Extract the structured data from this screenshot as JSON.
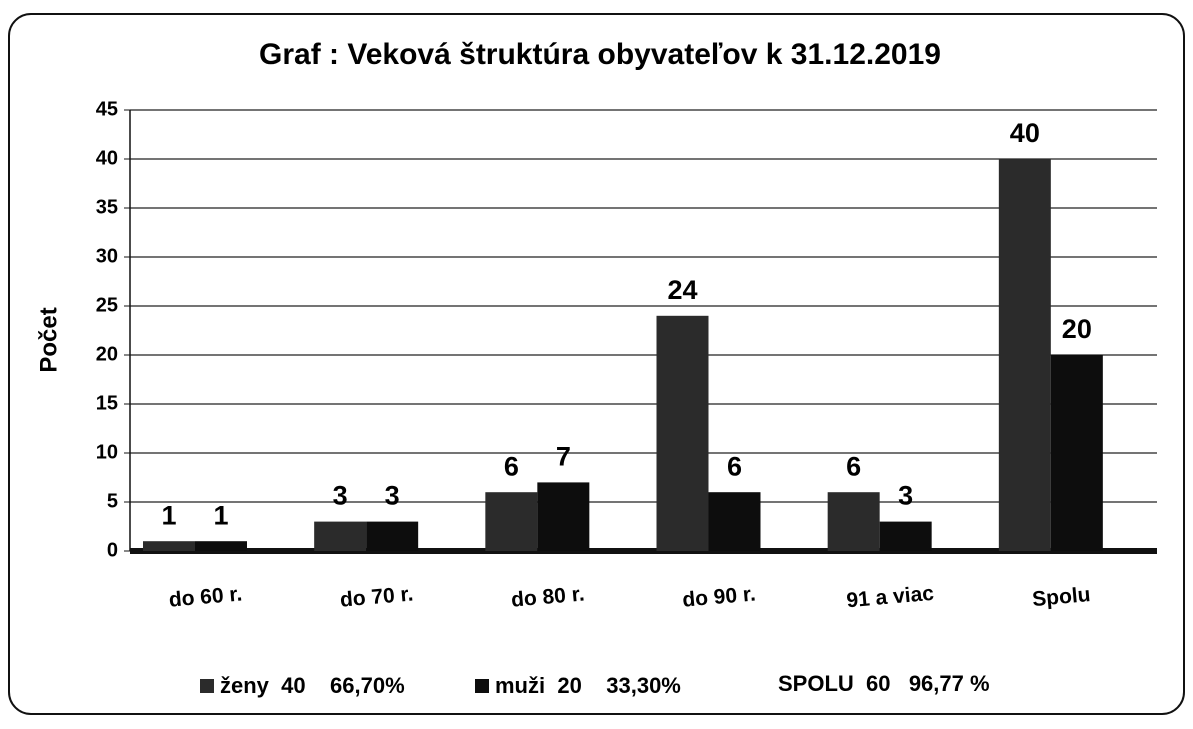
{
  "chart_data": {
    "type": "bar",
    "title": "Graf : Veková štruktúra obyvateľov k 31.12.2019",
    "y_label": "Počet",
    "categories": [
      "do 60 r.",
      "do 70 r.",
      "do 80 r.",
      "do 90 r.",
      "91 a viac",
      "Spolu"
    ],
    "series": [
      {
        "name": "ženy  40    66,70%",
        "color": "#2b2b2b",
        "values": [
          1,
          3,
          6,
          24,
          6,
          40
        ]
      },
      {
        "name": "muži  20    33,30%",
        "color": "#0d0d0d",
        "values": [
          1,
          3,
          7,
          6,
          3,
          20
        ]
      }
    ],
    "legend_extra": "SPOLU  60   96,77 %",
    "ylim": [
      0,
      45
    ],
    "yticks": [
      0,
      5,
      10,
      15,
      20,
      25,
      30,
      35,
      40,
      45
    ],
    "grid": true
  }
}
